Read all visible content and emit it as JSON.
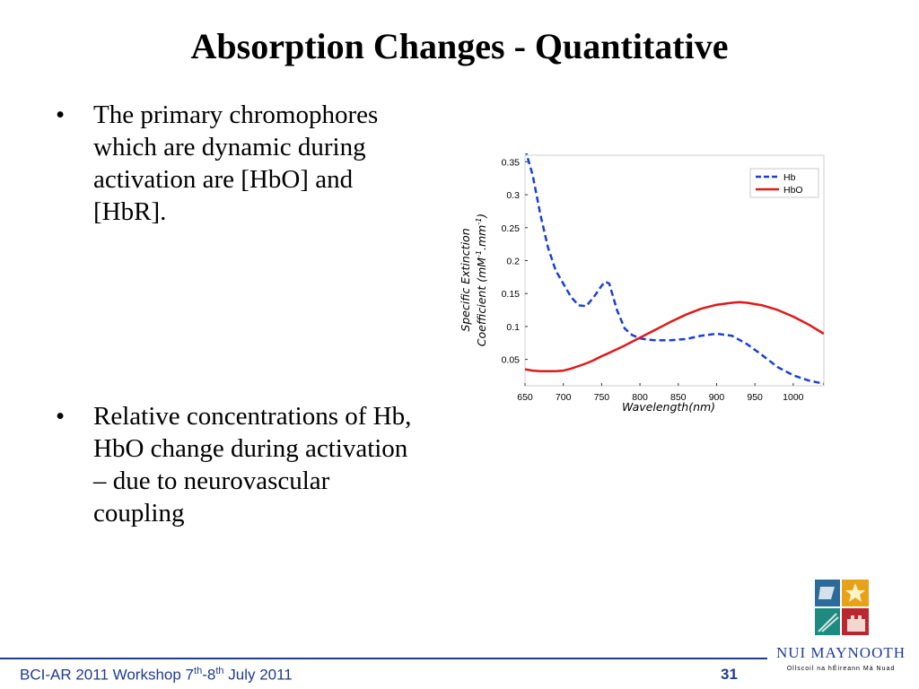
{
  "slide": {
    "title": "Absorption Changes - Quantitative",
    "bullets": [
      "The primary chromophores which are dynamic during activation are [HbO] and [HbR].",
      "Relative concentrations of Hb, HbO change during activation – due to neurovascular coupling"
    ]
  },
  "footer": {
    "event": "BCI-AR 2011 Workshop 7",
    "sup1": "th",
    "dash": "-8",
    "sup2": "th",
    "rest": " July 2011",
    "page": "31"
  },
  "logo": {
    "name": "NUI MAYNOOTH",
    "subtitle": "Ollscoil na hÉireann Má Nuad"
  },
  "chart_data": {
    "type": "line",
    "xlabel": "Wavelength(nm)",
    "ylabel_line1": "Specific Extinction",
    "ylabel_line2": "Coefficient  (mM",
    "ylabel_sup1": "-1",
    "ylabel_mid": ".mm",
    "ylabel_sup2": "-1",
    "ylabel_end": ")",
    "xlim": [
      650,
      1040
    ],
    "ylim": [
      0.01,
      0.36
    ],
    "xticks": [
      "650",
      "700",
      "750",
      "800",
      "850",
      "900",
      "950",
      "1000"
    ],
    "xtick_values": [
      650,
      700,
      750,
      800,
      850,
      900,
      950,
      1000
    ],
    "yticks": [
      "0.05",
      "0.1",
      "0.15",
      "0.2",
      "0.25",
      "0.3",
      "0.35"
    ],
    "ytick_values": [
      0.05,
      0.1,
      0.15,
      0.2,
      0.25,
      0.3,
      0.35
    ],
    "legend_position": "top-right",
    "series": [
      {
        "name": "Hb",
        "color": "#1a3fd4",
        "dash": "dashed",
        "x": [
          650,
          660,
          670,
          680,
          690,
          700,
          710,
          720,
          730,
          740,
          750,
          755,
          760,
          765,
          770,
          780,
          790,
          800,
          810,
          820,
          840,
          860,
          880,
          900,
          920,
          940,
          960,
          980,
          1000,
          1020,
          1040
        ],
        "y": [
          0.37,
          0.33,
          0.27,
          0.22,
          0.185,
          0.165,
          0.145,
          0.132,
          0.131,
          0.145,
          0.162,
          0.168,
          0.165,
          0.145,
          0.125,
          0.097,
          0.087,
          0.082,
          0.08,
          0.079,
          0.079,
          0.081,
          0.086,
          0.089,
          0.086,
          0.073,
          0.056,
          0.038,
          0.026,
          0.018,
          0.013
        ]
      },
      {
        "name": "HbO",
        "color": "#e01818",
        "dash": "solid",
        "x": [
          650,
          660,
          670,
          680,
          690,
          700,
          710,
          720,
          730,
          740,
          750,
          760,
          780,
          800,
          820,
          840,
          860,
          880,
          900,
          920,
          930,
          940,
          960,
          980,
          1000,
          1020,
          1040
        ],
        "y": [
          0.035,
          0.033,
          0.032,
          0.032,
          0.032,
          0.033,
          0.036,
          0.04,
          0.044,
          0.049,
          0.055,
          0.06,
          0.071,
          0.083,
          0.095,
          0.107,
          0.118,
          0.127,
          0.133,
          0.136,
          0.137,
          0.136,
          0.132,
          0.125,
          0.115,
          0.103,
          0.089
        ]
      }
    ]
  }
}
